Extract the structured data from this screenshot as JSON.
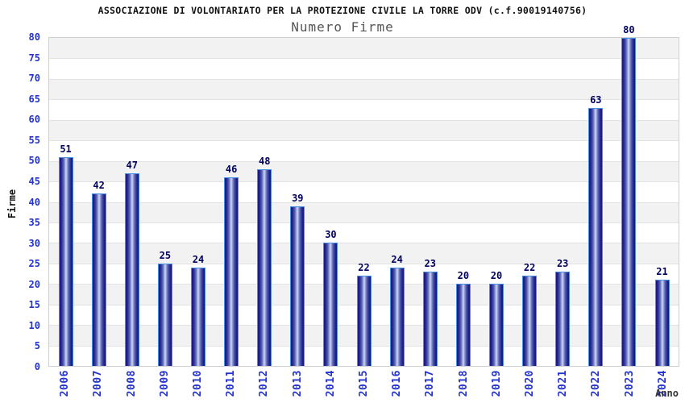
{
  "chart_data": {
    "type": "bar",
    "title": "ASSOCIAZIONE DI VOLONTARIATO PER LA PROTEZIONE CIVILE LA TORRE ODV (c.f.90019140756)",
    "subtitle": "Numero Firme",
    "xlabel": "Anno",
    "ylabel": "Firme",
    "categories": [
      "2006",
      "2007",
      "2008",
      "2009",
      "2010",
      "2011",
      "2012",
      "2013",
      "2014",
      "2015",
      "2016",
      "2017",
      "2018",
      "2019",
      "2020",
      "2021",
      "2022",
      "2023",
      "2024"
    ],
    "values": [
      51,
      42,
      47,
      25,
      24,
      46,
      48,
      39,
      30,
      22,
      24,
      23,
      20,
      20,
      22,
      23,
      63,
      80,
      21
    ],
    "ylim": [
      0,
      80
    ],
    "ytick_step": 5,
    "yticks": [
      80,
      75,
      70,
      65,
      60,
      55,
      50,
      45,
      40,
      35,
      30,
      25,
      20,
      15,
      10,
      5,
      0
    ],
    "grid": "alternating horizontal bands, gridline every 5 units",
    "legend": "none",
    "bar_labels_shown": true,
    "colors": {
      "axis_tick_text": "#2433c9",
      "bar_value_text": "#00005f",
      "title_text": "#111111",
      "subtitle_text": "#555555",
      "axis_title_text": "#333333",
      "bar_border": "#4a90e2",
      "bar_edge": "#17177c",
      "bar_center": "#d6dbf4",
      "band_gray": "#f2f2f2",
      "band_white": "#ffffff",
      "gridline": "#e2e2e2",
      "plot_border": "#cfcfcf"
    }
  }
}
